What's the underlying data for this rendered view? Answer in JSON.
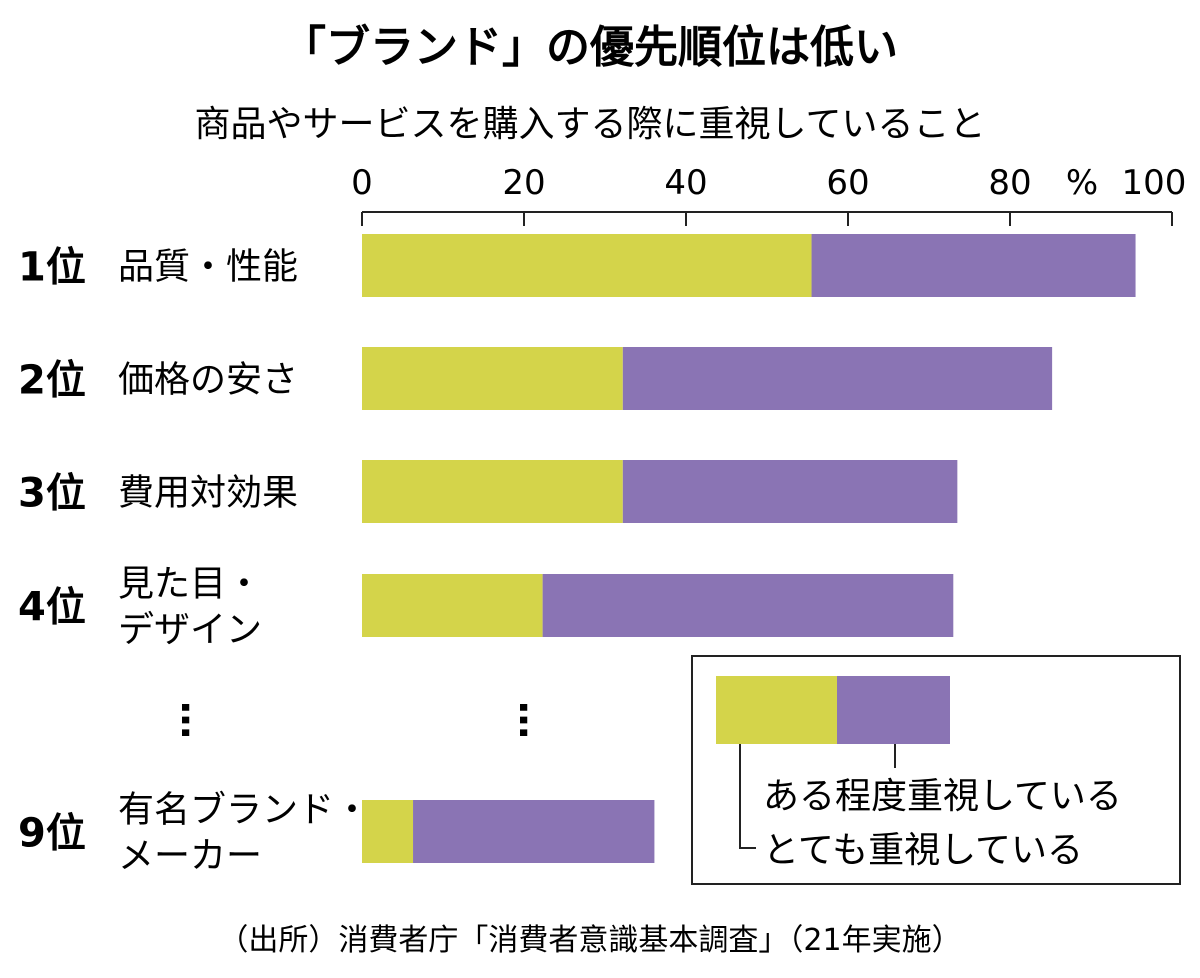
{
  "chart_data": {
    "type": "bar",
    "orientation": "horizontal",
    "stacked": true,
    "title": "「ブランド」の優先順位は低い",
    "subtitle": "商品やサービスを購入する際に重視していること",
    "x_ticks": [
      "0",
      "20",
      "40",
      "60",
      "80",
      "100"
    ],
    "unit": "%",
    "xlim": [
      0,
      100
    ],
    "categories": [
      {
        "rank": "1位",
        "label": [
          "品質・性能"
        ]
      },
      {
        "rank": "2位",
        "label": [
          "価格の安さ"
        ]
      },
      {
        "rank": "3位",
        "label": [
          "費用対効果"
        ]
      },
      {
        "rank": "4位",
        "label": [
          "見た目・",
          "デザイン"
        ]
      },
      {
        "rank": "9位",
        "label": [
          "有名ブランド・",
          "メーカー"
        ]
      }
    ],
    "series": [
      {
        "name": "とても重視している",
        "color": "#d4d44a",
        "values": [
          55.5,
          32.2,
          32.2,
          22.3,
          6.3
        ]
      },
      {
        "name": "ある程度重視している",
        "color": "#8a74b4",
        "values": [
          40.0,
          53.0,
          41.3,
          50.7,
          29.8
        ]
      }
    ],
    "gap_marker": "…",
    "legend": {
      "position": "bottom-right",
      "entries": [
        "ある程度重視している",
        "とても重視している"
      ]
    },
    "source": "（出所）消費者庁「消費者意識基本調査」（21年実施）"
  }
}
